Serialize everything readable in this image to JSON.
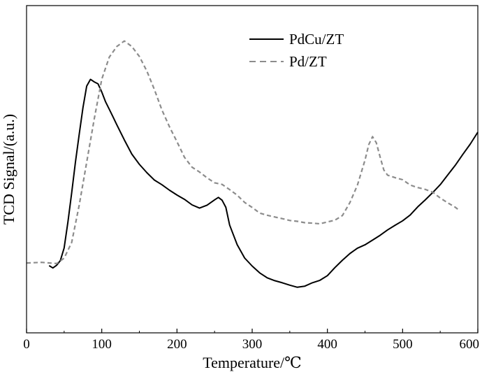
{
  "chart_data": {
    "type": "line",
    "title": "",
    "xlabel": "Temperature/℃",
    "ylabel": "TCD Signal/(a.u.)",
    "xlim": [
      0,
      600
    ],
    "ylim": [
      0,
      100
    ],
    "x_ticks": [
      "0",
      "100",
      "200",
      "300",
      "400",
      "500",
      "600"
    ],
    "y_ticks_shown": false,
    "grid": false,
    "legend_position": "top-right",
    "series": [
      {
        "name": "PdCu/ZT",
        "style": "solid",
        "color": "#000000",
        "x": [
          30,
          35,
          40,
          45,
          50,
          55,
          60,
          65,
          70,
          75,
          80,
          85,
          90,
          95,
          100,
          105,
          110,
          115,
          120,
          130,
          140,
          150,
          160,
          170,
          180,
          190,
          200,
          210,
          220,
          230,
          240,
          250,
          255,
          260,
          265,
          270,
          280,
          290,
          300,
          310,
          320,
          330,
          340,
          350,
          360,
          370,
          380,
          390,
          400,
          410,
          420,
          430,
          440,
          450,
          460,
          470,
          480,
          490,
          500,
          510,
          520,
          530,
          540,
          550,
          560,
          570,
          580,
          590,
          600
        ],
        "y": [
          14,
          13,
          14,
          16,
          21,
          31,
          43,
          55,
          66,
          77,
          85,
          88,
          87,
          86,
          83,
          79,
          76,
          73,
          70,
          64,
          58,
          54,
          51,
          48,
          46,
          44,
          42,
          40,
          38,
          37,
          38,
          40,
          41,
          40,
          37,
          30,
          22,
          17,
          14,
          11,
          9,
          8,
          7,
          6,
          5.5,
          6,
          7,
          8,
          10,
          13,
          16,
          19,
          21,
          22,
          24,
          26,
          28,
          30,
          32,
          34,
          37,
          40,
          43,
          46,
          50,
          54,
          58,
          62,
          67
        ]
      },
      {
        "name": "Pd/ZT",
        "style": "dashed",
        "color": "#8c8c8c",
        "x": [
          0,
          20,
          40,
          50,
          60,
          70,
          80,
          90,
          100,
          110,
          120,
          130,
          140,
          150,
          160,
          170,
          180,
          190,
          200,
          210,
          220,
          230,
          240,
          250,
          260,
          270,
          280,
          290,
          300,
          310,
          320,
          330,
          340,
          350,
          360,
          370,
          380,
          390,
          400,
          410,
          420,
          430,
          440,
          450,
          455,
          460,
          465,
          470,
          475,
          480,
          490,
          500,
          510,
          520,
          530,
          540,
          550,
          560,
          570,
          575
        ],
        "y": [
          15,
          15,
          15,
          17,
          23,
          38,
          55,
          72,
          88,
          97,
          101,
          103,
          101,
          97,
          91,
          84,
          76,
          69,
          63,
          57,
          53,
          51,
          49,
          47,
          46,
          44,
          42,
          39,
          37,
          35,
          34,
          33,
          32.5,
          32,
          31.5,
          31,
          31,
          30.5,
          31,
          32,
          34,
          39,
          46,
          56,
          62,
          65,
          63,
          57,
          52,
          50,
          49,
          48,
          46,
          45,
          44,
          43,
          41,
          39,
          37,
          36
        ]
      }
    ]
  }
}
